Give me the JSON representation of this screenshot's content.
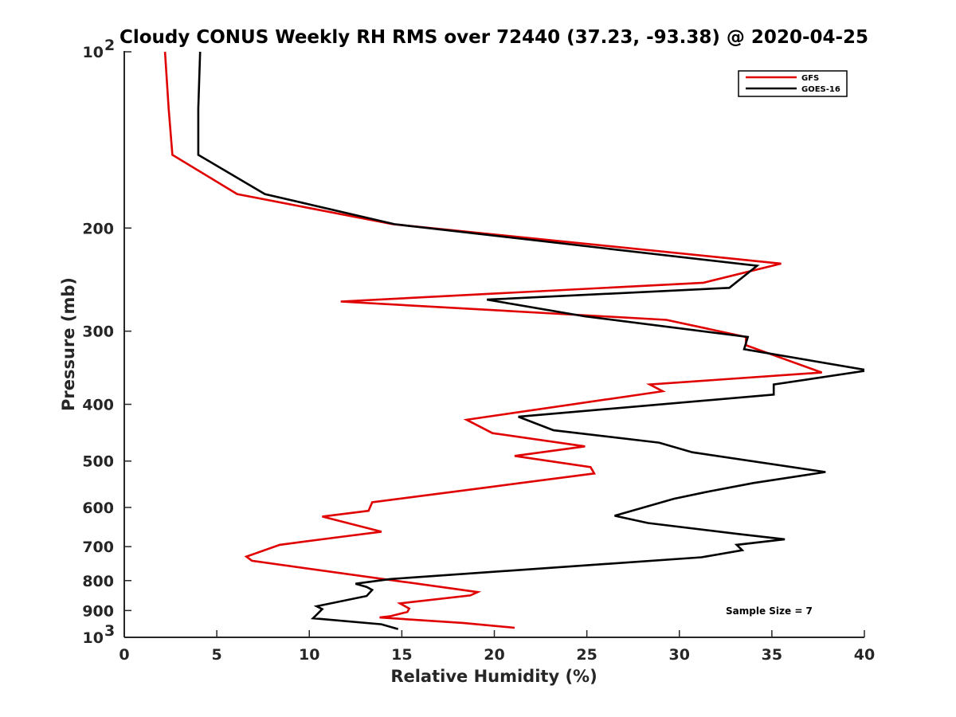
{
  "chart_data": {
    "type": "line",
    "title": "Cloudy CONUS Weekly RH RMS over 72440 (37.23, -93.38) @ 2020-04-25",
    "xlabel": "Relative Humidity (%)",
    "ylabel": "Pressure (mb)",
    "xlim": [
      0,
      40
    ],
    "ylim": [
      1000,
      100
    ],
    "y_scale": "log",
    "y_reversed": true,
    "grid": false,
    "legend_position": "top-right",
    "x_ticks": [
      "0",
      "5",
      "10",
      "15",
      "20",
      "25",
      "30",
      "35",
      "40"
    ],
    "y_ticks": [
      {
        "value": 100,
        "label": "10",
        "exp": "2"
      },
      {
        "value": 200,
        "label": "200"
      },
      {
        "value": 300,
        "label": "300"
      },
      {
        "value": 400,
        "label": "400"
      },
      {
        "value": 500,
        "label": "500"
      },
      {
        "value": 600,
        "label": "600"
      },
      {
        "value": 700,
        "label": "700"
      },
      {
        "value": 800,
        "label": "800"
      },
      {
        "value": 900,
        "label": "900"
      },
      {
        "value": 1000,
        "label": "10",
        "exp": "3"
      }
    ],
    "annotation": "Sample Size = 7",
    "series": [
      {
        "name": "GFS",
        "color": "#e00000",
        "points": [
          [
            2.2,
            100
          ],
          [
            2.4,
            125
          ],
          [
            2.6,
            150
          ],
          [
            6.1,
            175
          ],
          [
            14.5,
            197
          ],
          [
            35.5,
            230
          ],
          [
            31.3,
            248
          ],
          [
            11.7,
            267
          ],
          [
            29.3,
            287
          ],
          [
            33.6,
            307
          ],
          [
            33.6,
            317
          ],
          [
            37.7,
            353
          ],
          [
            28.4,
            370
          ],
          [
            29.1,
            380
          ],
          [
            18.5,
            425
          ],
          [
            19.9,
            448
          ],
          [
            24.9,
            472
          ],
          [
            21.1,
            490
          ],
          [
            25.2,
            512
          ],
          [
            25.4,
            525
          ],
          [
            19.9,
            553
          ],
          [
            13.4,
            588
          ],
          [
            13.2,
            608
          ],
          [
            10.7,
            622
          ],
          [
            13.9,
            660
          ],
          [
            11.5,
            675
          ],
          [
            8.4,
            695
          ],
          [
            6.6,
            728
          ],
          [
            6.9,
            740
          ],
          [
            19.1,
            837
          ],
          [
            18.7,
            848
          ],
          [
            14.9,
            875
          ],
          [
            15.4,
            893
          ],
          [
            15.3,
            905
          ],
          [
            14.4,
            920
          ],
          [
            13.8,
            925
          ],
          [
            18.3,
            945
          ],
          [
            21.1,
            963
          ]
        ]
      },
      {
        "name": "GOES-16",
        "color": "#000000",
        "points": [
          [
            4.1,
            100
          ],
          [
            4.0,
            125
          ],
          [
            4.0,
            150
          ],
          [
            7.6,
            175
          ],
          [
            14.6,
            197
          ],
          [
            34.2,
            232
          ],
          [
            32.7,
            253
          ],
          [
            19.6,
            265
          ],
          [
            24.9,
            283
          ],
          [
            33.7,
            307
          ],
          [
            33.5,
            322
          ],
          [
            40.2,
            350
          ],
          [
            35.1,
            370
          ],
          [
            35.1,
            385
          ],
          [
            21.3,
            420
          ],
          [
            23.2,
            443
          ],
          [
            28.9,
            465
          ],
          [
            30.7,
            483
          ],
          [
            37.9,
            522
          ],
          [
            34.0,
            545
          ],
          [
            31.4,
            565
          ],
          [
            29.7,
            580
          ],
          [
            26.5,
            620
          ],
          [
            28.3,
            638
          ],
          [
            33.2,
            666
          ],
          [
            35.7,
            680
          ],
          [
            33.1,
            695
          ],
          [
            33.4,
            710
          ],
          [
            31.2,
            730
          ],
          [
            14.4,
            795
          ],
          [
            12.5,
            810
          ],
          [
            13.1,
            820
          ],
          [
            13.4,
            830
          ],
          [
            13.1,
            850
          ],
          [
            10.4,
            885
          ],
          [
            10.7,
            895
          ],
          [
            10.4,
            915
          ],
          [
            10.2,
            928
          ],
          [
            13.9,
            950
          ],
          [
            14.8,
            968
          ]
        ]
      }
    ]
  }
}
